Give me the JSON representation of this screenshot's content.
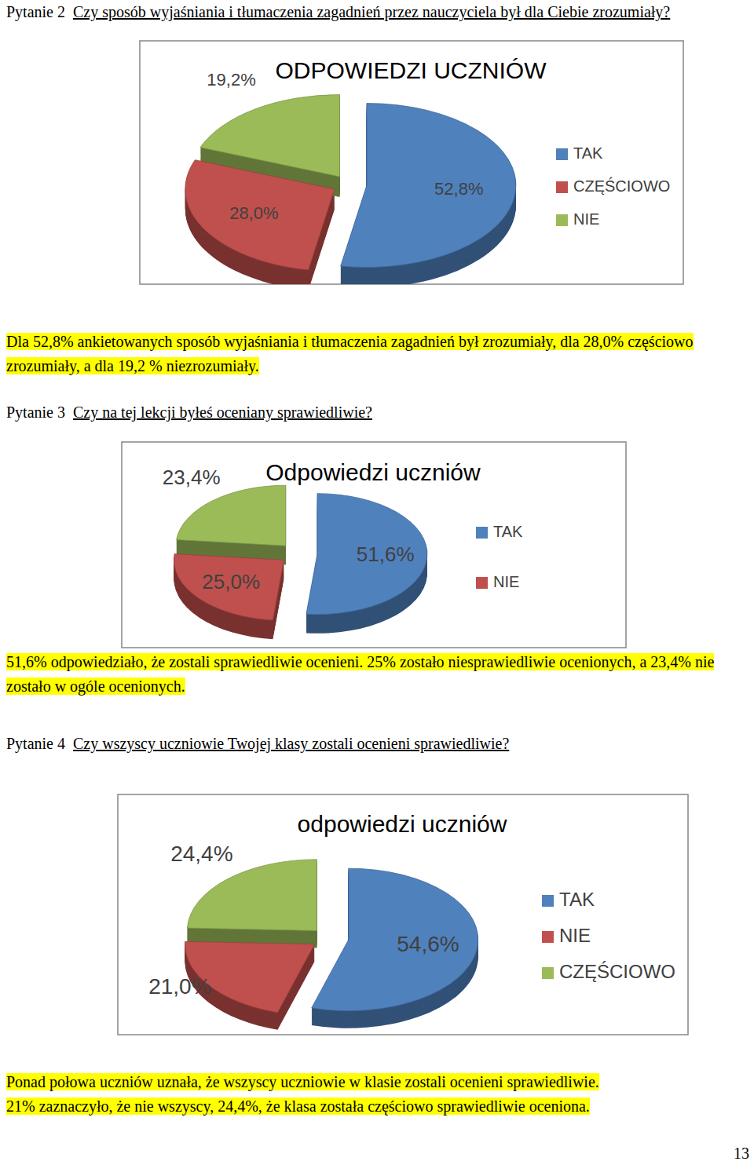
{
  "chart_data": [
    {
      "type": "pie",
      "title": "ODPOWIEDZI UCZNIÓW",
      "categories": [
        "TAK",
        "CZĘŚCIOWO",
        "NIE"
      ],
      "values": [
        52.8,
        28.0,
        19.2
      ],
      "value_labels": [
        "52,8%",
        "28,0%",
        "19,2%"
      ],
      "colors": [
        "#4f81bd",
        "#c0504d",
        "#9bbb59"
      ],
      "data_labels": true,
      "legend": "right"
    },
    {
      "type": "pie",
      "title": "Odpowiedzi uczniów",
      "categories": [
        "TAK",
        "NIE",
        null
      ],
      "values": [
        51.6,
        25.0,
        23.4
      ],
      "value_labels": [
        "51,6%",
        "25,0%",
        "23,4%"
      ],
      "colors": [
        "#4f81bd",
        "#c0504d",
        "#9bbb59"
      ],
      "data_labels": true,
      "legend": "right"
    },
    {
      "type": "pie",
      "title": "odpowiedzi uczniów",
      "categories": [
        "TAK",
        "NIE",
        "CZĘŚCIOWO"
      ],
      "values": [
        54.6,
        21.0,
        24.4
      ],
      "value_labels": [
        "54,6%",
        "21,0%",
        "24,4%"
      ],
      "colors": [
        "#4f81bd",
        "#c0504d",
        "#9bbb59"
      ],
      "data_labels": true,
      "legend": "right"
    }
  ],
  "page": {
    "sections": [
      {
        "number": "Pytanie 2",
        "question": "Czy sposób wyjaśniania i tłumaczenia zagadnień przez nauczyciela był dla Ciebie zrozumiały?",
        "summary": [
          "Dla 52,8% ankietowanych sposób wyjaśniania i tłumaczenia zagadnień był zrozumiały, dla 28,0% częściowo zrozumiały, a dla 19,2 % niezrozumiały."
        ]
      },
      {
        "number": "Pytanie 3",
        "question": "Czy na tej lekcji byłeś oceniany sprawiedliwie?",
        "summary": [
          "51,6% odpowiedziało, że zostali sprawiedliwie ocenieni. 25% zostało niesprawiedliwie ocenionych, a 23,4% nie zostało w ogóle ocenionych."
        ]
      },
      {
        "number": "Pytanie 4",
        "question": "Czy wszyscy uczniowie Twojej klasy zostali ocenieni sprawiedliwie?",
        "summary": [
          "Ponad połowa uczniów uznała, że wszyscy uczniowie w klasie zostali ocenieni sprawiedliwie.",
          "21% zaznaczyło, że nie wszyscy,  24,4%, że klasa została częściowo sprawiedliwie oceniona."
        ]
      }
    ],
    "page_number": "13"
  }
}
